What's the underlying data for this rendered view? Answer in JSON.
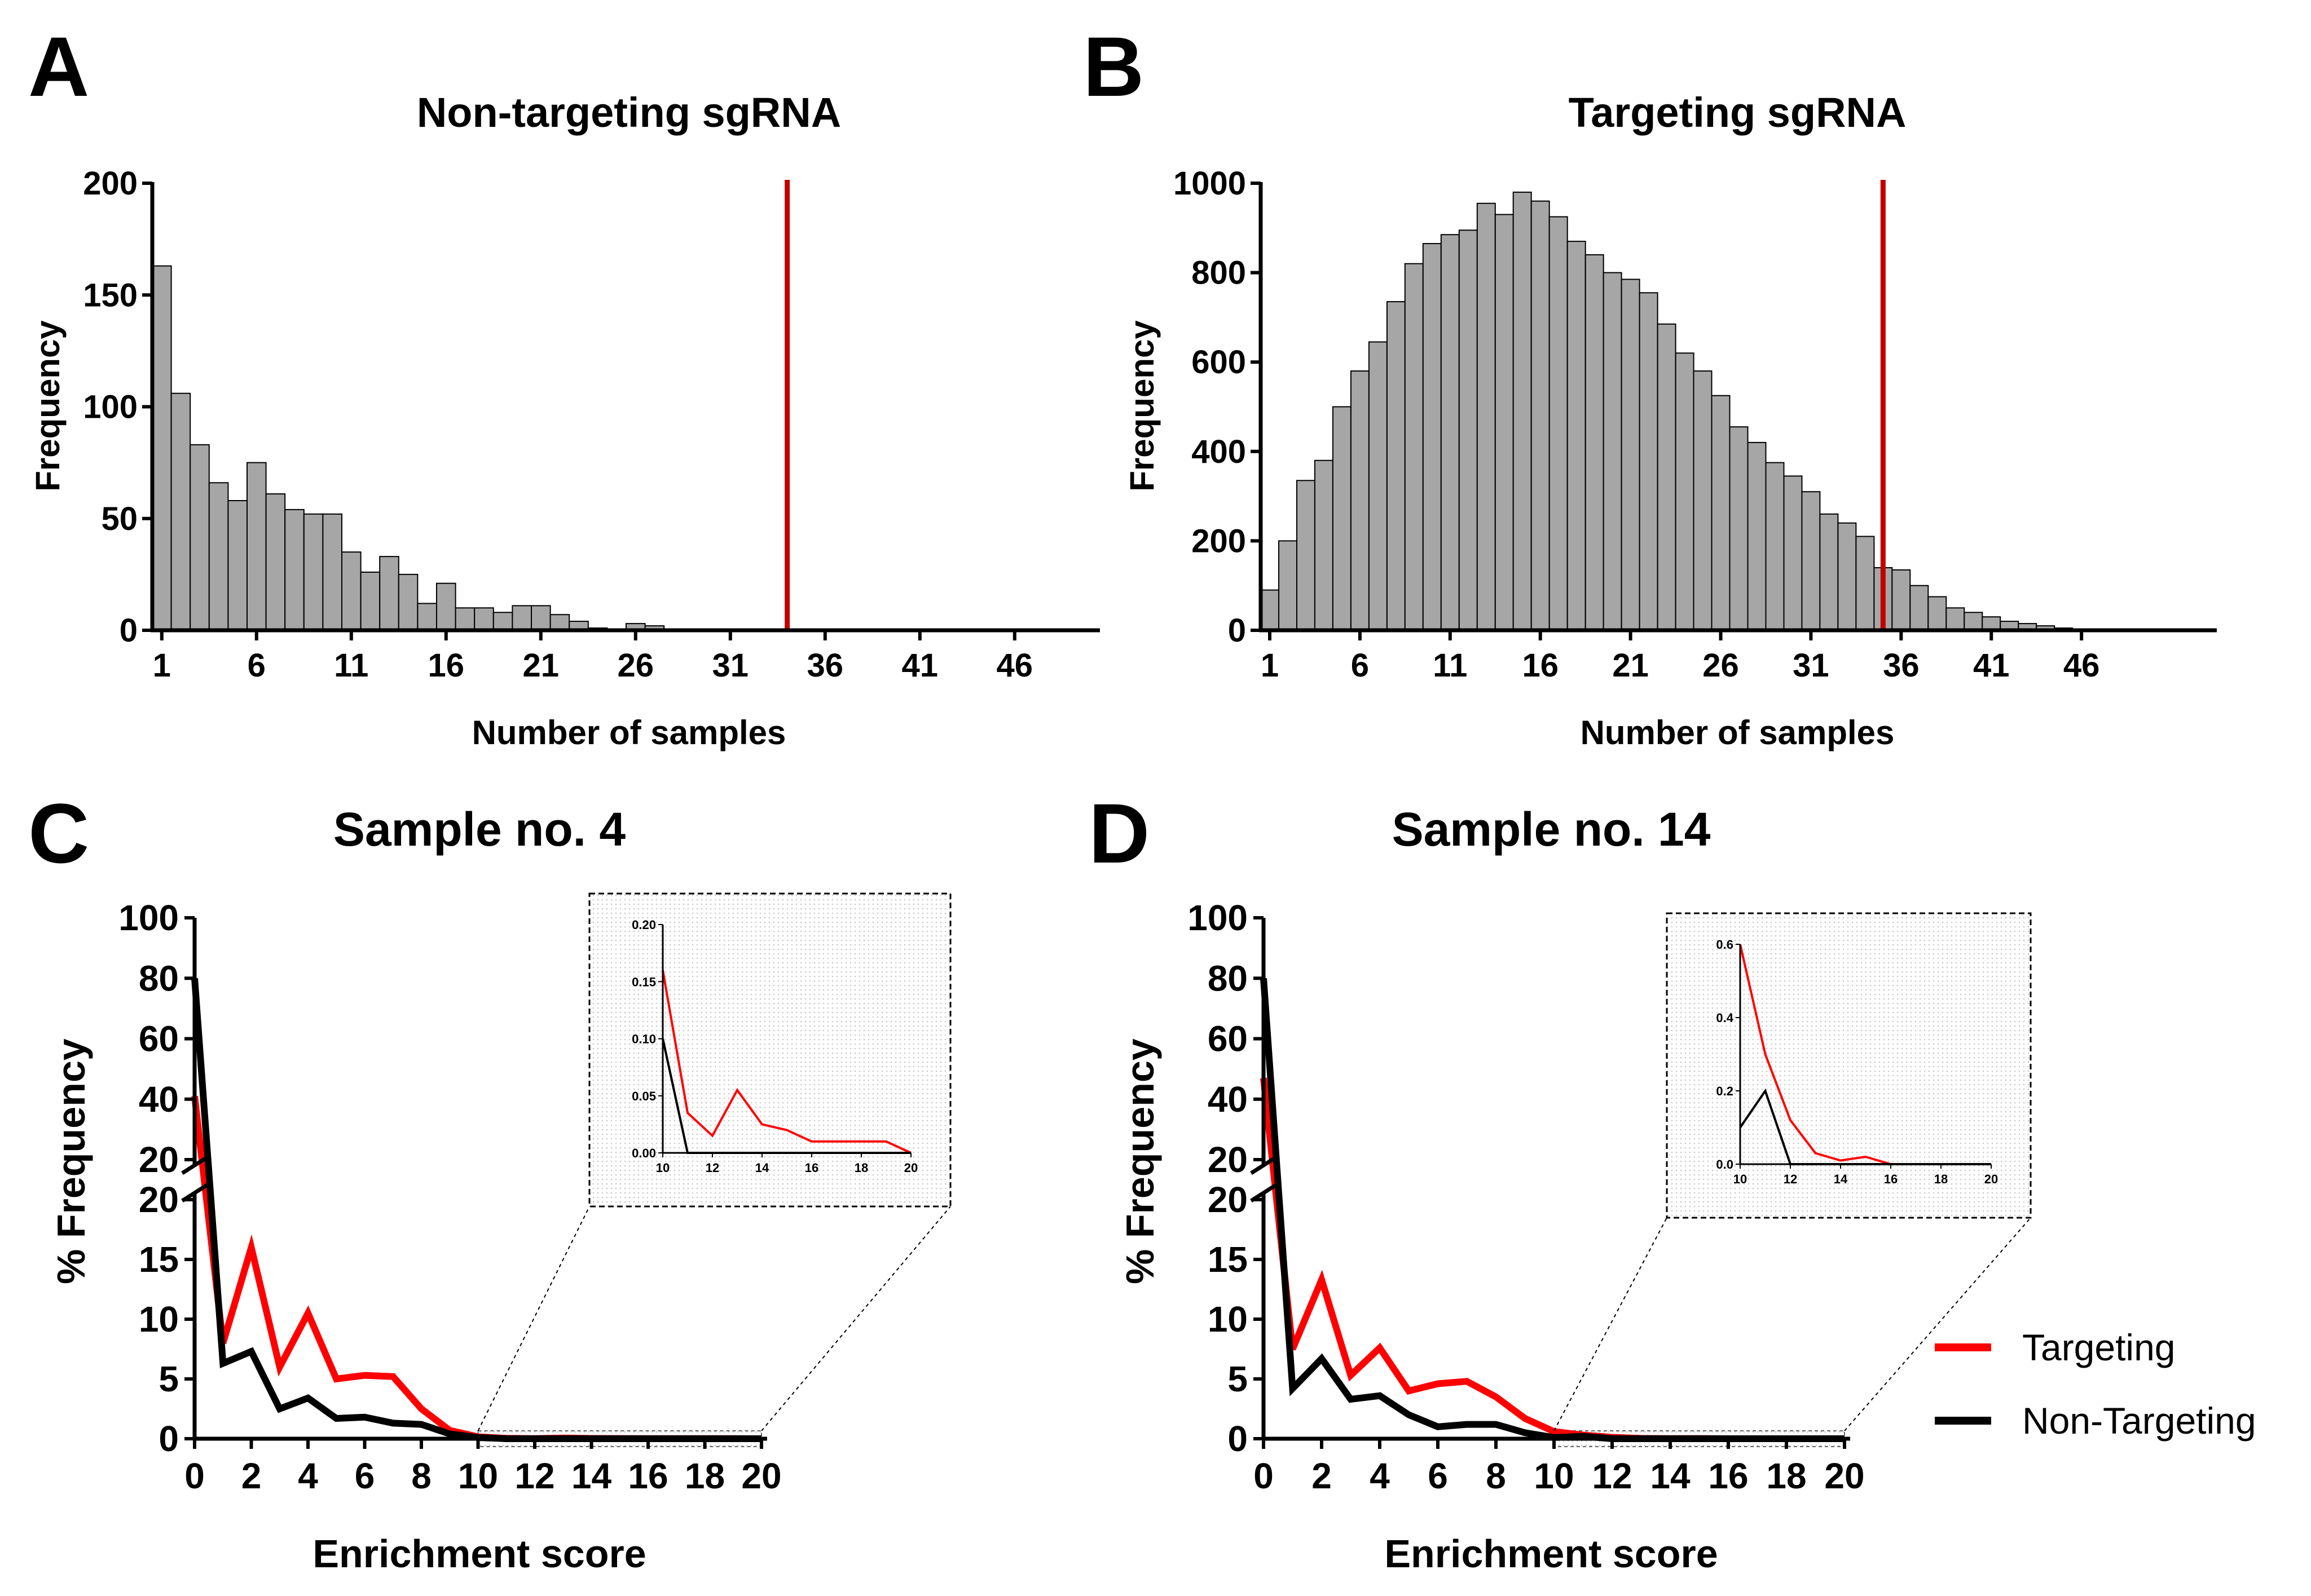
{
  "panels": {
    "a": "A",
    "b": "B",
    "c": "C",
    "d": "D"
  },
  "chart_data": [
    {
      "id": "A",
      "type": "bar",
      "title": "Non-targeting sgRNA",
      "xlabel": "Number of samples",
      "ylabel": "Frequency",
      "ylim": [
        0,
        200
      ],
      "yticks": [
        0,
        50,
        100,
        150,
        200
      ],
      "xticks": [
        1,
        6,
        11,
        16,
        21,
        26,
        31,
        36,
        41,
        46
      ],
      "xlim": [
        0.5,
        50.5
      ],
      "x": [
        1,
        2,
        3,
        4,
        5,
        6,
        7,
        8,
        9,
        10,
        11,
        12,
        13,
        14,
        15,
        16,
        17,
        18,
        19,
        20,
        21,
        22,
        23,
        24,
        25,
        26,
        27,
        28,
        29,
        30,
        31,
        32,
        33,
        34,
        35,
        36,
        37,
        38,
        39,
        40,
        41,
        42,
        43,
        44,
        45,
        46,
        47,
        48,
        49,
        50
      ],
      "values": [
        163,
        106,
        83,
        66,
        58,
        75,
        61,
        54,
        52,
        52,
        35,
        26,
        33,
        25,
        12,
        21,
        10,
        10,
        8,
        11,
        11,
        7,
        4,
        1,
        0,
        3,
        2,
        0,
        0,
        0,
        0,
        0,
        0,
        0,
        0,
        0,
        0,
        0,
        0,
        0,
        0,
        0,
        0,
        0,
        0,
        0,
        0,
        0,
        0,
        0
      ],
      "threshold": 34
    },
    {
      "id": "B",
      "type": "bar",
      "title": "Targeting sgRNA",
      "xlabel": "Number of samples",
      "ylabel": "Frequency",
      "ylim": [
        0,
        1000
      ],
      "yticks": [
        0,
        200,
        400,
        600,
        800,
        1000
      ],
      "xticks": [
        1,
        6,
        11,
        16,
        21,
        26,
        31,
        36,
        41,
        46
      ],
      "xlim": [
        0.5,
        53.5
      ],
      "x": [
        1,
        2,
        3,
        4,
        5,
        6,
        7,
        8,
        9,
        10,
        11,
        12,
        13,
        14,
        15,
        16,
        17,
        18,
        19,
        20,
        21,
        22,
        23,
        24,
        25,
        26,
        27,
        28,
        29,
        30,
        31,
        32,
        33,
        34,
        35,
        36,
        37,
        38,
        39,
        40,
        41,
        42,
        43,
        44,
        45,
        46,
        47,
        48,
        49,
        50,
        51,
        52,
        53
      ],
      "values": [
        90,
        200,
        335,
        380,
        500,
        580,
        645,
        735,
        820,
        865,
        885,
        895,
        955,
        930,
        980,
        960,
        925,
        870,
        840,
        800,
        785,
        755,
        685,
        620,
        580,
        525,
        455,
        420,
        375,
        345,
        310,
        260,
        240,
        210,
        140,
        135,
        100,
        75,
        50,
        40,
        30,
        20,
        15,
        10,
        5,
        2,
        0,
        0,
        0,
        0,
        0,
        0,
        0
      ],
      "threshold": 35
    },
    {
      "id": "C",
      "type": "line",
      "title": "Sample no. 4",
      "xlabel": "Enrichment score",
      "ylabel": "% Frequency",
      "x": [
        0,
        1,
        2,
        3,
        4,
        5,
        6,
        7,
        8,
        9,
        10,
        11,
        12,
        13,
        14,
        15,
        16,
        17,
        18,
        19,
        20
      ],
      "xticks": [
        0,
        2,
        4,
        6,
        8,
        10,
        12,
        14,
        16,
        18,
        20
      ],
      "yticks_lower": [
        0,
        5,
        10,
        15,
        20
      ],
      "yticks_upper": [
        20,
        40,
        60,
        80,
        100
      ],
      "broken_y_axis": true,
      "series": [
        {
          "name": "Targeting",
          "color": "#ff0000",
          "values": [
            41,
            8,
            16,
            6,
            10.5,
            5,
            5.3,
            5.2,
            2.5,
            0.7,
            0.16,
            0.035,
            0.015,
            0.055,
            0.025,
            0.02,
            0.01,
            0.01,
            0.01,
            0.01,
            0.0
          ]
        },
        {
          "name": "Non-Targeting",
          "color": "#000000",
          "values": [
            80,
            6.3,
            7.3,
            2.5,
            3.4,
            1.7,
            1.8,
            1.3,
            1.2,
            0.4,
            0.1,
            0.0,
            0.0,
            0.0,
            0.0,
            0.0,
            0.0,
            0.0,
            0.0,
            0.0,
            0.0
          ]
        }
      ],
      "inset": {
        "xlim": [
          10,
          20
        ],
        "ylim": [
          0,
          0.2
        ],
        "xticks": [
          10,
          12,
          14,
          16,
          18,
          20
        ],
        "yticks": [
          0.0,
          0.05,
          0.1,
          0.15,
          0.2
        ],
        "ytick_labels": [
          "0.00",
          "0.05",
          "0.10",
          "0.15",
          "0.20"
        ]
      }
    },
    {
      "id": "D",
      "type": "line",
      "title": "Sample no. 14",
      "xlabel": "Enrichment score",
      "ylabel": "% Frequency",
      "x": [
        0,
        1,
        2,
        3,
        4,
        5,
        6,
        7,
        8,
        9,
        10,
        11,
        12,
        13,
        14,
        15,
        16,
        17,
        18,
        19,
        20
      ],
      "xticks": [
        0,
        2,
        4,
        6,
        8,
        10,
        12,
        14,
        16,
        18,
        20
      ],
      "yticks_lower": [
        0,
        5,
        10,
        15,
        20
      ],
      "yticks_upper": [
        20,
        40,
        60,
        80,
        100
      ],
      "broken_y_axis": true,
      "series": [
        {
          "name": "Targeting",
          "color": "#ff0000",
          "values": [
            47,
            7.5,
            13.3,
            5.3,
            7.6,
            4.0,
            4.6,
            4.8,
            3.5,
            1.7,
            0.6,
            0.3,
            0.12,
            0.03,
            0.01,
            0.02,
            0.0,
            0.0,
            0.0,
            0.0,
            0.0
          ]
        },
        {
          "name": "Non-Targeting",
          "color": "#000000",
          "values": [
            80,
            4.2,
            6.7,
            3.3,
            3.6,
            2.0,
            1.0,
            1.2,
            1.2,
            0.5,
            0.1,
            0.2,
            0.0,
            0.0,
            0.0,
            0.0,
            0.0,
            0.0,
            0.0,
            0.0,
            0.0
          ]
        }
      ],
      "inset": {
        "xlim": [
          10,
          20
        ],
        "ylim": [
          0,
          0.6
        ],
        "xticks": [
          10,
          12,
          14,
          16,
          18,
          20
        ],
        "yticks": [
          0.0,
          0.2,
          0.4,
          0.6
        ],
        "ytick_labels": [
          "0.0",
          "0.2",
          "0.4",
          "0.6"
        ]
      }
    }
  ],
  "legend": {
    "items": [
      {
        "label": "Targeting",
        "color": "#ff0000"
      },
      {
        "label": "Non-Targeting",
        "color": "#000000"
      }
    ]
  },
  "colors": {
    "bar_fill": "#a6a6a6",
    "threshold_line": "#c00000",
    "axis": "#000000"
  }
}
